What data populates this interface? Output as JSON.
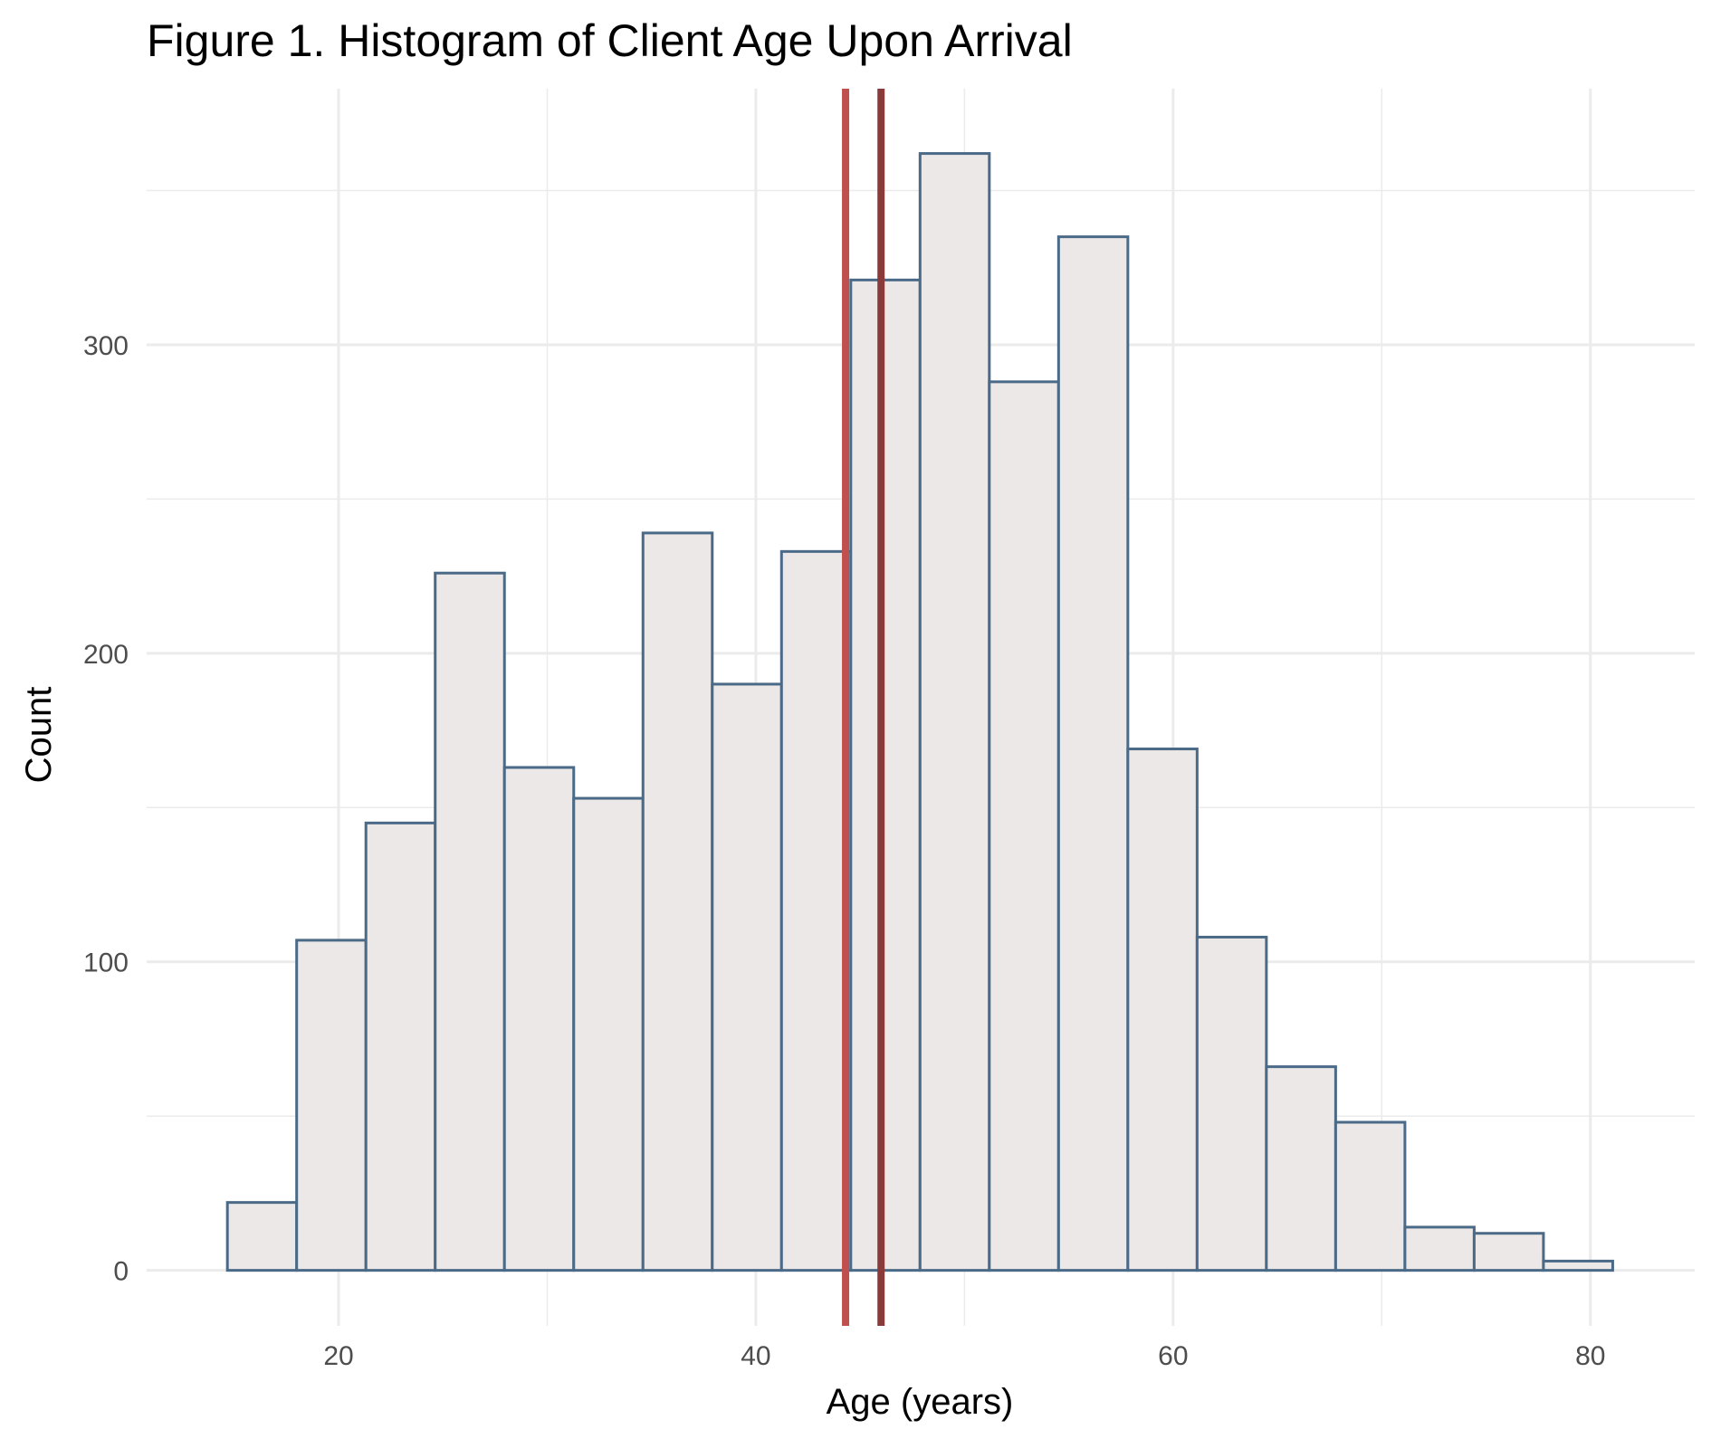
{
  "chart_data": {
    "type": "bar",
    "title": "Figure 1. Histogram of Client Age Upon Arrival",
    "xlabel": "Age (years)",
    "ylabel": "Count",
    "xlim": [
      10.8,
      85.0
    ],
    "ylim": [
      -18,
      383
    ],
    "x_ticks": [
      20,
      40,
      60,
      80
    ],
    "y_ticks": [
      0,
      100,
      200,
      300
    ],
    "y_minor_ticks": [
      50,
      150,
      250,
      350
    ],
    "x_minor_ticks": [
      30,
      50,
      70
    ],
    "grid": true,
    "bins": [
      {
        "start": 14.67,
        "end": 17.99,
        "count": 22
      },
      {
        "start": 17.99,
        "end": 21.31,
        "count": 107
      },
      {
        "start": 21.31,
        "end": 24.63,
        "count": 145
      },
      {
        "start": 24.63,
        "end": 27.95,
        "count": 226
      },
      {
        "start": 27.95,
        "end": 31.27,
        "count": 163
      },
      {
        "start": 31.27,
        "end": 34.59,
        "count": 153
      },
      {
        "start": 34.59,
        "end": 37.91,
        "count": 239
      },
      {
        "start": 37.91,
        "end": 41.23,
        "count": 190
      },
      {
        "start": 41.23,
        "end": 44.55,
        "count": 233
      },
      {
        "start": 44.55,
        "end": 47.87,
        "count": 321
      },
      {
        "start": 47.87,
        "end": 51.19,
        "count": 362
      },
      {
        "start": 51.19,
        "end": 54.51,
        "count": 288
      },
      {
        "start": 54.51,
        "end": 57.83,
        "count": 335
      },
      {
        "start": 57.83,
        "end": 61.15,
        "count": 169
      },
      {
        "start": 61.15,
        "end": 64.47,
        "count": 108
      },
      {
        "start": 64.47,
        "end": 67.79,
        "count": 66
      },
      {
        "start": 67.79,
        "end": 71.11,
        "count": 48
      },
      {
        "start": 71.11,
        "end": 74.43,
        "count": 14
      },
      {
        "start": 74.43,
        "end": 77.75,
        "count": 12
      },
      {
        "start": 77.75,
        "end": 81.07,
        "count": 3
      }
    ],
    "reference_lines": [
      {
        "x": 44.3,
        "color": "#c0504d"
      },
      {
        "x": 46.0,
        "color": "#8b3a3a"
      }
    ],
    "colors": {
      "bar_fill": "#ece8e7",
      "bar_stroke": "#4a6a87",
      "grid": "#ebebeb"
    }
  }
}
